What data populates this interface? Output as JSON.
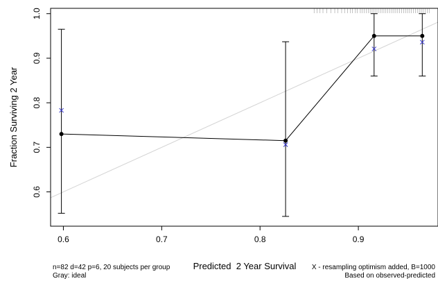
{
  "chart_data": {
    "type": "line",
    "title": "",
    "xlabel": "Predicted  2 Year Survival",
    "ylabel": "Fraction Surviving 2 Year",
    "xlim": [
      0.587,
      0.981
    ],
    "ylim": [
      0.523,
      1.012
    ],
    "xticks": [
      "0.6",
      "0.7",
      "0.8",
      "0.9"
    ],
    "yticks": [
      "0.6",
      "0.7",
      "0.8",
      "0.9",
      "1.0"
    ],
    "grid": false,
    "ideal_line": {
      "name": "ideal",
      "color": "#d3d3d3",
      "from": [
        0.587,
        0.587
      ],
      "to": [
        0.981,
        0.981
      ]
    },
    "observed": {
      "color": "#000000",
      "x": [
        0.598,
        0.826,
        0.916,
        0.965
      ],
      "y": [
        0.73,
        0.715,
        0.95,
        0.95
      ],
      "lower": [
        0.552,
        0.545,
        0.86,
        0.86
      ],
      "upper": [
        0.965,
        0.937,
        1.0,
        1.0
      ]
    },
    "optimism_corrected": {
      "color": "#3333cc",
      "marker": "x",
      "x": [
        0.598,
        0.826,
        0.916,
        0.965
      ],
      "y": [
        0.783,
        0.706,
        0.921,
        0.936
      ]
    },
    "rug_x": [
      0.855,
      0.858,
      0.861,
      0.864,
      0.868,
      0.872,
      0.876,
      0.879,
      0.883,
      0.886,
      0.889,
      0.892,
      0.894,
      0.897,
      0.899,
      0.902,
      0.904,
      0.906,
      0.908,
      0.91,
      0.912,
      0.914,
      0.916,
      0.918,
      0.92,
      0.922,
      0.924,
      0.926,
      0.928,
      0.93,
      0.932,
      0.934,
      0.936,
      0.938,
      0.94,
      0.942,
      0.944,
      0.946,
      0.948,
      0.95,
      0.952,
      0.954,
      0.956,
      0.958,
      0.96,
      0.962,
      0.964,
      0.966,
      0.968,
      0.97,
      0.972
    ]
  },
  "notes": {
    "left": [
      "n=82 d=42 p=6, 20 subjects per group",
      "Gray: ideal"
    ],
    "right": [
      "X - resampling optimism added, B=1000",
      "Based on observed-predicted"
    ]
  }
}
